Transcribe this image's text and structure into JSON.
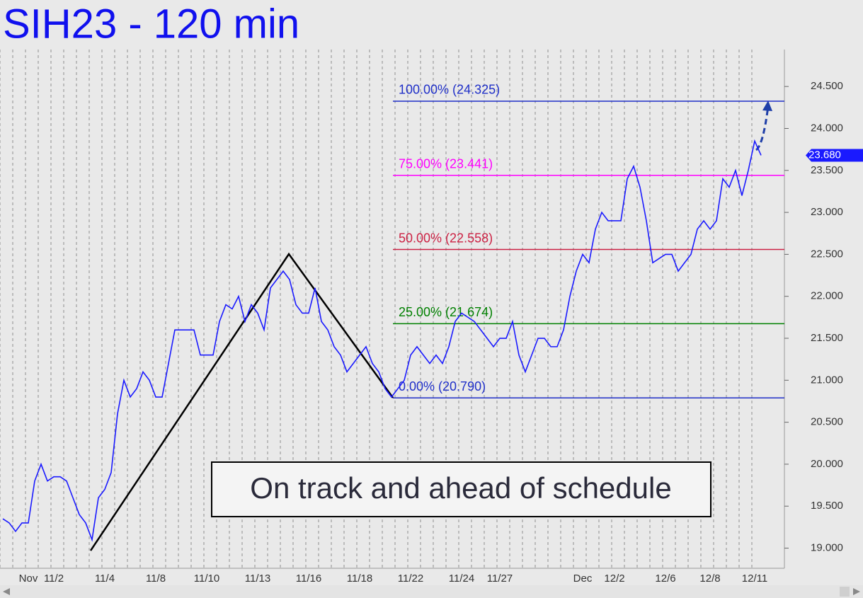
{
  "chart_data": {
    "type": "line",
    "title": "SIH23 - 120 min",
    "caption": "On track and ahead of schedule",
    "categories": [
      null,
      null,
      null,
      null,
      "Nov",
      null,
      null,
      null,
      "11/2",
      null,
      null,
      null,
      null,
      null,
      null,
      null,
      "11/4",
      null,
      null,
      null,
      null,
      null,
      null,
      null,
      "11/8",
      null,
      null,
      null,
      null,
      null,
      null,
      null,
      "11/10",
      null,
      null,
      null,
      null,
      null,
      null,
      null,
      "11/13",
      null,
      null,
      null,
      null,
      null,
      null,
      null,
      "11/16",
      null,
      null,
      null,
      null,
      null,
      null,
      null,
      "11/18",
      null,
      null,
      null,
      null,
      null,
      null,
      null,
      "11/22",
      null,
      null,
      null,
      null,
      null,
      null,
      null,
      "11/24",
      null,
      null,
      null,
      null,
      null,
      "11/27",
      null,
      null,
      null,
      null,
      null,
      null,
      null,
      null,
      null,
      null,
      null,
      null,
      "Dec",
      null,
      null,
      null,
      null,
      "12/2",
      null,
      null,
      null,
      null,
      null,
      null,
      null,
      "12/6",
      null,
      null,
      null,
      null,
      null,
      null,
      "12/8",
      null,
      null,
      null,
      null,
      null,
      null,
      "12/11",
      null
    ],
    "series": [
      {
        "name": "SIH23",
        "color": "#1a1aff",
        "values": [
          19.35,
          19.3,
          19.2,
          19.3,
          19.3,
          19.8,
          20.0,
          19.8,
          19.85,
          19.85,
          19.8,
          19.6,
          19.4,
          19.3,
          19.1,
          19.6,
          19.7,
          19.9,
          20.6,
          21.0,
          20.8,
          20.9,
          21.1,
          21.0,
          20.8,
          20.8,
          21.2,
          21.6,
          21.6,
          21.6,
          21.6,
          21.3,
          21.3,
          21.3,
          21.7,
          21.9,
          21.85,
          22.0,
          21.7,
          21.9,
          21.8,
          21.6,
          22.1,
          22.2,
          22.3,
          22.2,
          21.9,
          21.8,
          21.8,
          22.1,
          21.7,
          21.6,
          21.4,
          21.3,
          21.1,
          21.2,
          21.3,
          21.4,
          21.2,
          21.1,
          20.9,
          20.8,
          20.9,
          21.0,
          21.3,
          21.4,
          21.3,
          21.2,
          21.3,
          21.2,
          21.4,
          21.7,
          21.8,
          21.75,
          21.7,
          21.6,
          21.5,
          21.4,
          21.5,
          21.5,
          21.7,
          21.3,
          21.1,
          21.3,
          21.5,
          21.5,
          21.4,
          21.4,
          21.6,
          22.0,
          22.3,
          22.5,
          22.4,
          22.8,
          23.0,
          22.9,
          22.9,
          22.9,
          23.4,
          23.55,
          23.3,
          22.9,
          22.4,
          22.45,
          22.5,
          22.5,
          22.3,
          22.4,
          22.5,
          22.8,
          22.9,
          22.8,
          22.9,
          23.4,
          23.3,
          23.5,
          23.2,
          23.5,
          23.85,
          23.68
        ]
      }
    ],
    "ylim": [
      18.76,
      24.94
    ],
    "yticks": [
      {
        "value": 19,
        "label": "19.000"
      },
      {
        "value": 19.5,
        "label": "19.500"
      },
      {
        "value": 20,
        "label": "20.000"
      },
      {
        "value": 20.5,
        "label": "20.500"
      },
      {
        "value": 21,
        "label": "21.000"
      },
      {
        "value": 21.5,
        "label": "21.500"
      },
      {
        "value": 22,
        "label": "22.000"
      },
      {
        "value": 22.5,
        "label": "22.500"
      },
      {
        "value": 23,
        "label": "23.000"
      },
      {
        "value": 23.5,
        "label": "23.500"
      },
      {
        "value": 24,
        "label": "24.000"
      },
      {
        "value": 24.5,
        "label": "24.500"
      }
    ],
    "levels": [
      {
        "value": 24.325,
        "label": "100.00% (24.325)",
        "color": "#1f2fc8"
      },
      {
        "value": 23.441,
        "label": "75.00% (23.441)",
        "color": "#ff00ff"
      },
      {
        "value": 22.558,
        "label": "50.00% (22.558)",
        "color": "#cc2244"
      },
      {
        "value": 21.674,
        "label": "25.00% (21.674)",
        "color": "#008000"
      },
      {
        "value": 20.79,
        "label": "0.00% (20.790)",
        "color": "#1f2fc8"
      }
    ],
    "last_price": {
      "value": 23.68,
      "label": "23.680",
      "color": "#1a1aff"
    }
  }
}
